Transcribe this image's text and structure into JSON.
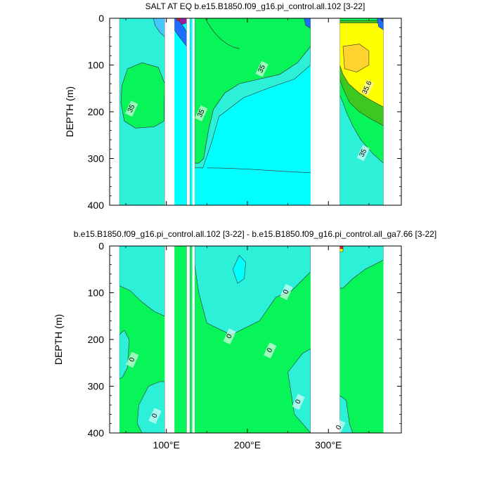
{
  "chart_data": [
    {
      "type": "heatmap",
      "subtype": "filled-contour",
      "title": "SALT AT EQ b.e15.B1850.f09_g16.pi_control.all.102 [3-22]",
      "ylabel": "DEPTH (m)",
      "xlabel": "",
      "xlim": [
        30,
        390
      ],
      "ylim": [
        400,
        0
      ],
      "yticks": [
        0,
        100,
        200,
        300,
        400
      ],
      "ytick_labels": [
        "0",
        "100",
        "200",
        "300",
        "400"
      ],
      "xticks": [
        100,
        200,
        300
      ],
      "xtick_labels": [
        "",
        "",
        ""
      ],
      "land_gaps_lon": [
        [
          98,
          110
        ],
        [
          125,
          129
        ],
        [
          132,
          135
        ],
        [
          278,
          314
        ]
      ],
      "contour_labels": [
        {
          "text": "35",
          "lon": 220,
          "depth": 110
        },
        {
          "text": "35",
          "lon": 59,
          "depth": 195
        },
        {
          "text": "35",
          "lon": 145,
          "depth": 205
        },
        {
          "text": "35.6",
          "lon": 350,
          "depth": 150
        },
        {
          "text": "35",
          "lon": 345,
          "depth": 290
        }
      ],
      "colors": {
        "turquoise": "#2cf0d7",
        "cyan": "#00ffff",
        "green": "#08f55a",
        "dark_green": "#3cc81e",
        "yellow": "#ffff00",
        "orange": "#ffd430",
        "sky": "#46c8ff",
        "blue": "#1e6eff",
        "navy": "#1432b4",
        "purple": "#9b1e9b",
        "red": "#e61e28"
      }
    },
    {
      "type": "heatmap",
      "subtype": "filled-contour",
      "title": "b.e15.B1850.f09_g16.pi_control.all.102 [3-22] - b.e15.B1850.f09_g16.pi_control.all_ga7.66 [3-22]",
      "ylabel": "DEPTH (m)",
      "xlabel": "",
      "xlim": [
        30,
        390
      ],
      "ylim": [
        400,
        0
      ],
      "yticks": [
        0,
        100,
        200,
        300,
        400
      ],
      "ytick_labels": [
        "0",
        "100",
        "200",
        "300",
        "400"
      ],
      "xticks": [
        100,
        200,
        300
      ],
      "xtick_labels": [
        "100°E",
        "200°E",
        "300°E"
      ],
      "land_gaps_lon": [
        [
          98,
          110
        ],
        [
          125,
          129
        ],
        [
          132,
          135
        ],
        [
          278,
          314
        ]
      ],
      "contour_labels": [
        {
          "text": "0",
          "lon": 250,
          "depth": 100
        },
        {
          "text": "0",
          "lon": 180,
          "depth": 195
        },
        {
          "text": "0",
          "lon": 60,
          "depth": 245
        },
        {
          "text": "0",
          "lon": 230,
          "depth": 225
        },
        {
          "text": "0",
          "lon": 88,
          "depth": 365
        },
        {
          "text": "0",
          "lon": 265,
          "depth": 335
        },
        {
          "text": "0",
          "lon": 315,
          "depth": 390
        }
      ],
      "colors": {
        "turquoise": "#2cf0d7",
        "cyan": "#00ffff",
        "green": "#08f55a",
        "dark_green": "#3cc81e",
        "yellow": "#ffff00",
        "orange": "#ffd430",
        "sky": "#46c8ff",
        "blue": "#1e6eff",
        "navy": "#1432b4",
        "purple": "#9b1e9b",
        "red": "#e61e28"
      }
    }
  ]
}
